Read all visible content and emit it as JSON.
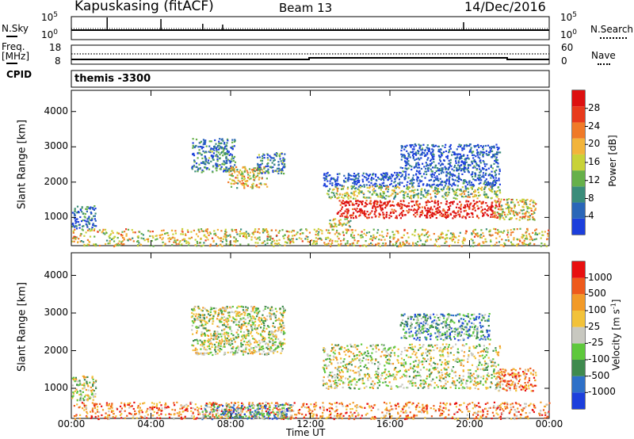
{
  "header": {
    "station": "Kapuskasing (fitACF)",
    "beam": "Beam 13",
    "date": "14/Dec/2016"
  },
  "noise_panel": {
    "left_label": "N.Sky",
    "right_label": "N.Search",
    "left_ticks": [
      "10^5",
      "10^0"
    ],
    "right_ticks": [
      "10^5",
      "10^0"
    ]
  },
  "freq_panel": {
    "left_label_1": "Freq.",
    "left_label_2": "[MHz]",
    "right_label": "Nave",
    "left_ticks": [
      "18",
      "8"
    ],
    "right_ticks": [
      "60",
      "0"
    ]
  },
  "cpid_panel": {
    "left_label": "CPID",
    "value_label": "themis -3300"
  },
  "chart_data": [
    {
      "type": "heatmap",
      "quantity": "Power",
      "ylabel": "Slant Range [km]",
      "yticks": [
        "1000",
        "2000",
        "3000",
        "4000"
      ],
      "ylim": [
        200,
        4600
      ],
      "colorbar_label": "Power [dB]",
      "colorbar_ticks": [
        "4",
        "8",
        "12",
        "16",
        "20",
        "24",
        "28"
      ],
      "colorscale": [
        "#1c3fdc",
        "#2a66b8",
        "#3a8c7a",
        "#66b04a",
        "#c8d238",
        "#f2b43a",
        "#f07a28",
        "#e83a1c",
        "#dd1010"
      ],
      "regions": [
        {
          "t0": 0.0,
          "t1": 24.0,
          "r0": 200,
          "r1": 700,
          "level": 0.55
        },
        {
          "t0": 0.0,
          "t1": 1.2,
          "r0": 700,
          "r1": 1350,
          "level": 0.15
        },
        {
          "t0": 6.0,
          "t1": 8.2,
          "r0": 2300,
          "r1": 3250,
          "level": 0.2
        },
        {
          "t0": 7.8,
          "t1": 9.8,
          "r0": 1850,
          "r1": 2450,
          "level": 0.55
        },
        {
          "t0": 9.3,
          "t1": 10.7,
          "r0": 2250,
          "r1": 2850,
          "level": 0.25
        },
        {
          "t0": 12.6,
          "t1": 21.5,
          "r0": 1900,
          "r1": 2300,
          "level": 0.1
        },
        {
          "t0": 12.8,
          "t1": 21.5,
          "r0": 1550,
          "r1": 1900,
          "level": 0.45
        },
        {
          "t0": 13.3,
          "t1": 21.5,
          "r0": 1000,
          "r1": 1500,
          "level": 0.95
        },
        {
          "t0": 21.2,
          "t1": 23.3,
          "r0": 950,
          "r1": 1550,
          "level": 0.55
        },
        {
          "t0": 16.5,
          "t1": 21.5,
          "r0": 2300,
          "r1": 3100,
          "level": 0.1
        },
        {
          "t0": 12.8,
          "t1": 14.0,
          "r0": 750,
          "r1": 1000,
          "level": 0.5
        }
      ]
    },
    {
      "type": "heatmap",
      "quantity": "Velocity",
      "ylabel": "Slant Range [km]",
      "yticks": [
        "1000",
        "2000",
        "3000",
        "4000"
      ],
      "ylim": [
        200,
        4600
      ],
      "colorbar_label": "Velocity [m s^-1]",
      "colorbar_ticks": [
        "1000",
        "500",
        "100",
        "25",
        "-25",
        "-100",
        "-500",
        "-1000"
      ],
      "colorscale": [
        "#1c3fdc",
        "#2e70c8",
        "#3f8a4e",
        "#5ec83c",
        "#c8c8c0",
        "#f2c23a",
        "#f29a28",
        "#ee5a1c",
        "#e81010"
      ],
      "regions": [
        {
          "t0": 0.0,
          "t1": 24.0,
          "r0": 200,
          "r1": 650,
          "level": 0.75
        },
        {
          "t0": 6.5,
          "t1": 11.0,
          "r0": 200,
          "r1": 600,
          "level": 0.3
        },
        {
          "t0": 0.0,
          "t1": 1.2,
          "r0": 700,
          "r1": 1350,
          "level": 0.5
        },
        {
          "t0": 6.0,
          "t1": 10.7,
          "r0": 1900,
          "r1": 3200,
          "level": 0.5
        },
        {
          "t0": 12.6,
          "t1": 21.5,
          "r0": 1000,
          "r1": 2200,
          "level": 0.5
        },
        {
          "t0": 21.3,
          "t1": 23.3,
          "r0": 950,
          "r1": 1550,
          "level": 0.75
        },
        {
          "t0": 16.5,
          "t1": 21.0,
          "r0": 2300,
          "r1": 3000,
          "level": 0.3
        }
      ]
    }
  ],
  "xaxis": {
    "label": "Time UT",
    "xlim": [
      0,
      24
    ],
    "ticks": [
      "00:00",
      "04:00",
      "08:00",
      "12:00",
      "16:00",
      "20:00",
      "00:00"
    ]
  }
}
